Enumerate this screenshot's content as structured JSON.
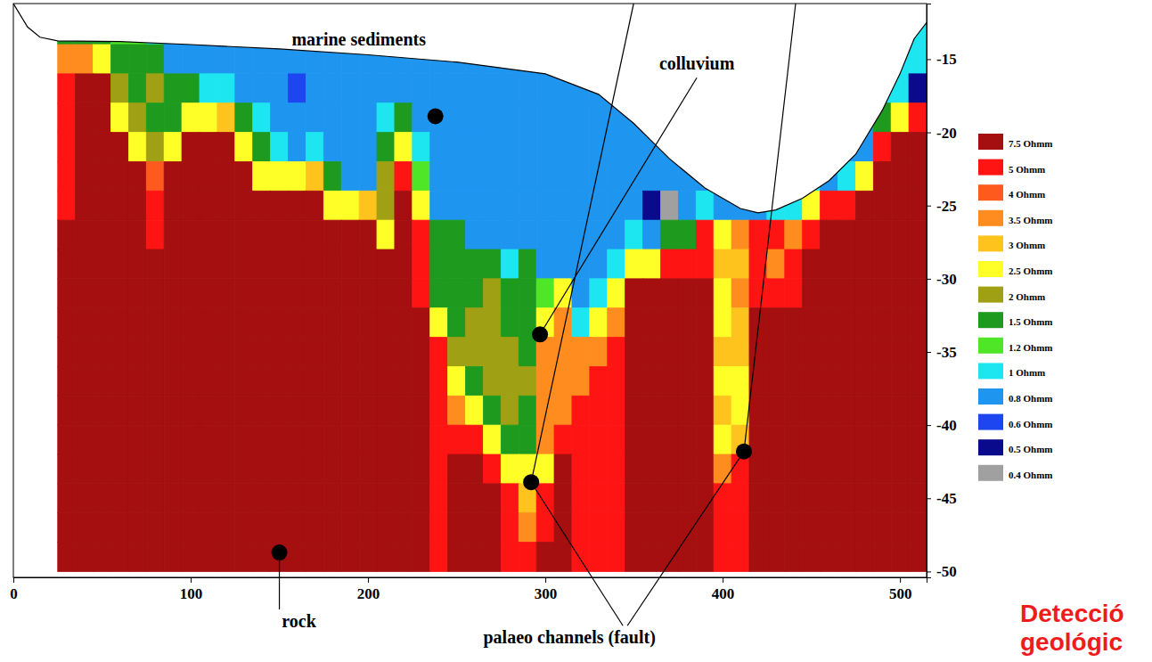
{
  "chart_data": {
    "type": "heatmap",
    "xlim": [
      0,
      515
    ],
    "ylim": [
      -50.4,
      -11.2
    ],
    "xticks": [
      0,
      100,
      200,
      300,
      400,
      500
    ],
    "yticks": [
      -15,
      -20,
      -25,
      -30,
      -35,
      -40,
      -45,
      -50
    ],
    "x_edges": [
      25,
      35,
      45,
      55,
      65,
      75,
      85,
      95,
      105,
      115,
      125,
      135,
      145,
      155,
      165,
      175,
      185,
      195,
      205,
      215,
      225,
      235,
      245,
      255,
      265,
      275,
      285,
      295,
      305,
      315,
      325,
      335,
      345,
      355,
      365,
      375,
      385,
      395,
      405,
      415,
      425,
      435,
      445,
      455,
      465,
      475,
      485,
      495,
      505,
      515
    ],
    "y_edges": [
      -12,
      -14,
      -16,
      -18,
      -20,
      -22,
      -24,
      -26,
      -28,
      -30,
      -32,
      -34,
      -36,
      -38,
      -40,
      -42,
      -44,
      -46,
      -48,
      -50
    ],
    "cells": [
      [
        1.5,
        1.5,
        1.5,
        1.2,
        1.2,
        1,
        0.8,
        0.8,
        null,
        null,
        null,
        null,
        null,
        null,
        null,
        null,
        null,
        null,
        null,
        null,
        null,
        null,
        null,
        null,
        null,
        null,
        null,
        null,
        null,
        null,
        null,
        null,
        null,
        null,
        null,
        null,
        null,
        null,
        null,
        null,
        null,
        null,
        null,
        null,
        null,
        null,
        null,
        null,
        1
      ],
      [
        3.5,
        3.5,
        2.5,
        1.5,
        1.5,
        1.5,
        0.8,
        0.8,
        0.8,
        0.8,
        0.8,
        0.8,
        0.8,
        0.8,
        0.8,
        0.8,
        0.8,
        0.8,
        0.8,
        0.8,
        0.8,
        0.8,
        0.8,
        0.8,
        0.8,
        0.8,
        0.8,
        0.8,
        null,
        null,
        null,
        null,
        null,
        null,
        null,
        null,
        null,
        null,
        null,
        null,
        null,
        null,
        null,
        null,
        null,
        null,
        null,
        1,
        1
      ],
      [
        5,
        7.5,
        7.5,
        2,
        1.5,
        2,
        1.5,
        1.5,
        1,
        1,
        0.8,
        0.8,
        0.8,
        0.6,
        0.8,
        0.8,
        0.8,
        0.8,
        0.8,
        0.8,
        0.8,
        0.8,
        0.8,
        0.8,
        0.8,
        0.8,
        0.8,
        0.8,
        0.8,
        0.8,
        0.8,
        0.8,
        null,
        null,
        null,
        null,
        null,
        null,
        null,
        null,
        null,
        null,
        null,
        null,
        null,
        null,
        1,
        1,
        0.5
      ],
      [
        5,
        7.5,
        7.5,
        2.5,
        2,
        1.5,
        1.5,
        2.5,
        2.5,
        3,
        1.5,
        1,
        0.8,
        0.8,
        0.8,
        0.8,
        0.8,
        0.8,
        1,
        1.5,
        0.8,
        0.8,
        0.8,
        0.8,
        0.8,
        0.8,
        0.8,
        0.8,
        0.8,
        0.8,
        0.8,
        0.8,
        0.8,
        null,
        null,
        null,
        null,
        null,
        null,
        null,
        null,
        null,
        null,
        null,
        null,
        0.8,
        1.5,
        2.5,
        5
      ],
      [
        5,
        7.5,
        7.5,
        7.5,
        2.5,
        2,
        2.5,
        7.5,
        7.5,
        7.5,
        2.5,
        1.5,
        1,
        0.8,
        1,
        0.8,
        0.8,
        0.8,
        1.5,
        2.5,
        1,
        0.8,
        0.8,
        0.8,
        0.8,
        0.8,
        0.8,
        0.8,
        0.8,
        0.8,
        0.8,
        0.8,
        0.8,
        0.8,
        0.8,
        null,
        null,
        null,
        null,
        null,
        null,
        null,
        null,
        null,
        0.8,
        0.8,
        5,
        7.5,
        7.5
      ],
      [
        5,
        7.5,
        7.5,
        7.5,
        7.5,
        4,
        7.5,
        7.5,
        7.5,
        7.5,
        7.5,
        2.5,
        2.5,
        2.5,
        3,
        1.5,
        0.8,
        0.8,
        2,
        5,
        1.2,
        0.8,
        0.8,
        0.8,
        0.8,
        0.8,
        0.8,
        0.8,
        0.8,
        0.8,
        0.8,
        0.8,
        0.8,
        0.8,
        0.8,
        0.8,
        0.8,
        null,
        null,
        null,
        null,
        null,
        1,
        0.8,
        1,
        2.5,
        7.5,
        7.5,
        7.5
      ],
      [
        5,
        7.5,
        7.5,
        7.5,
        7.5,
        5,
        7.5,
        7.5,
        7.5,
        7.5,
        7.5,
        7.5,
        7.5,
        7.5,
        7.5,
        2.5,
        2.5,
        3,
        2,
        7.5,
        2.5,
        0.8,
        0.8,
        0.8,
        0.8,
        0.8,
        0.8,
        0.8,
        0.8,
        0.8,
        0.8,
        0.8,
        0.8,
        0.5,
        0.4,
        0.8,
        1,
        0.8,
        0.8,
        0.8,
        1,
        1,
        2.5,
        5,
        5,
        7.5,
        7.5,
        7.5,
        7.5
      ],
      [
        7.5,
        7.5,
        7.5,
        7.5,
        7.5,
        5,
        7.5,
        7.5,
        7.5,
        7.5,
        7.5,
        7.5,
        7.5,
        7.5,
        7.5,
        7.5,
        7.5,
        7.5,
        2.5,
        7.5,
        5,
        1.5,
        1.5,
        0.8,
        0.8,
        0.8,
        0.8,
        0.8,
        0.8,
        0.8,
        0.8,
        0.8,
        1,
        0.8,
        1.5,
        1.5,
        5,
        2.5,
        3.5,
        5,
        5,
        3.5,
        5,
        7.5,
        7.5,
        7.5,
        7.5,
        7.5,
        7.5
      ],
      [
        7.5,
        7.5,
        7.5,
        7.5,
        7.5,
        7.5,
        7.5,
        7.5,
        7.5,
        7.5,
        7.5,
        7.5,
        7.5,
        7.5,
        7.5,
        7.5,
        7.5,
        7.5,
        7.5,
        7.5,
        5,
        1.5,
        1.5,
        1.5,
        1.5,
        1,
        1.5,
        0.8,
        0.8,
        0.8,
        0.8,
        1,
        2.5,
        2.5,
        5,
        5,
        5,
        3,
        3,
        5,
        3.5,
        5,
        7.5,
        7.5,
        7.5,
        7.5,
        7.5,
        7.5,
        7.5
      ],
      [
        7.5,
        7.5,
        7.5,
        7.5,
        7.5,
        7.5,
        7.5,
        7.5,
        7.5,
        7.5,
        7.5,
        7.5,
        7.5,
        7.5,
        7.5,
        7.5,
        7.5,
        7.5,
        7.5,
        7.5,
        5,
        1.5,
        1.5,
        1.5,
        2,
        1.5,
        1.5,
        1.2,
        2.5,
        0.8,
        1,
        2.5,
        7.5,
        7.5,
        7.5,
        7.5,
        7.5,
        2.5,
        3.5,
        5,
        5,
        5,
        7.5,
        7.5,
        7.5,
        7.5,
        7.5,
        7.5,
        7.5
      ],
      [
        7.5,
        7.5,
        7.5,
        7.5,
        7.5,
        7.5,
        7.5,
        7.5,
        7.5,
        7.5,
        7.5,
        7.5,
        7.5,
        7.5,
        7.5,
        7.5,
        7.5,
        7.5,
        7.5,
        7.5,
        7.5,
        2.5,
        1.5,
        2,
        2,
        1.5,
        1.5,
        2.5,
        3.5,
        1,
        2.5,
        3.5,
        7.5,
        7.5,
        7.5,
        7.5,
        7.5,
        2.5,
        3,
        7.5,
        7.5,
        7.5,
        7.5,
        7.5,
        7.5,
        7.5,
        7.5,
        7.5,
        7.5
      ],
      [
        7.5,
        7.5,
        7.5,
        7.5,
        7.5,
        7.5,
        7.5,
        7.5,
        7.5,
        7.5,
        7.5,
        7.5,
        7.5,
        7.5,
        7.5,
        7.5,
        7.5,
        7.5,
        7.5,
        7.5,
        7.5,
        5,
        2,
        2,
        2,
        2,
        1.5,
        3.5,
        3.5,
        3.5,
        3.5,
        5,
        7.5,
        7.5,
        7.5,
        7.5,
        7.5,
        3,
        3,
        7.5,
        7.5,
        7.5,
        7.5,
        7.5,
        7.5,
        7.5,
        7.5,
        7.5,
        7.5
      ],
      [
        7.5,
        7.5,
        7.5,
        7.5,
        7.5,
        7.5,
        7.5,
        7.5,
        7.5,
        7.5,
        7.5,
        7.5,
        7.5,
        7.5,
        7.5,
        7.5,
        7.5,
        7.5,
        7.5,
        7.5,
        7.5,
        5,
        2.5,
        1.5,
        2,
        2,
        2,
        3.5,
        3.5,
        3.5,
        5,
        5,
        7.5,
        7.5,
        7.5,
        7.5,
        7.5,
        2.5,
        2.5,
        7.5,
        7.5,
        7.5,
        7.5,
        7.5,
        7.5,
        7.5,
        7.5,
        7.5,
        7.5
      ],
      [
        7.5,
        7.5,
        7.5,
        7.5,
        7.5,
        7.5,
        7.5,
        7.5,
        7.5,
        7.5,
        7.5,
        7.5,
        7.5,
        7.5,
        7.5,
        7.5,
        7.5,
        7.5,
        7.5,
        7.5,
        7.5,
        5,
        3.5,
        2.5,
        1.5,
        2,
        1.5,
        3.5,
        3.5,
        5,
        5,
        5,
        7.5,
        7.5,
        7.5,
        7.5,
        7.5,
        3,
        2.5,
        7.5,
        7.5,
        7.5,
        7.5,
        7.5,
        7.5,
        7.5,
        7.5,
        7.5,
        7.5
      ],
      [
        7.5,
        7.5,
        7.5,
        7.5,
        7.5,
        7.5,
        7.5,
        7.5,
        7.5,
        7.5,
        7.5,
        7.5,
        7.5,
        7.5,
        7.5,
        7.5,
        7.5,
        7.5,
        7.5,
        7.5,
        7.5,
        5,
        5,
        5,
        2.5,
        1.5,
        1.5,
        3.5,
        5,
        5,
        5,
        5,
        7.5,
        7.5,
        7.5,
        7.5,
        7.5,
        2.5,
        3,
        7.5,
        7.5,
        7.5,
        7.5,
        7.5,
        7.5,
        7.5,
        7.5,
        7.5,
        7.5
      ],
      [
        7.5,
        7.5,
        7.5,
        7.5,
        7.5,
        7.5,
        7.5,
        7.5,
        7.5,
        7.5,
        7.5,
        7.5,
        7.5,
        7.5,
        7.5,
        7.5,
        7.5,
        7.5,
        7.5,
        7.5,
        7.5,
        5,
        7.5,
        7.5,
        5,
        2.5,
        2.5,
        2.5,
        7.5,
        5,
        5,
        5,
        7.5,
        7.5,
        7.5,
        7.5,
        7.5,
        3.5,
        5,
        7.5,
        7.5,
        7.5,
        7.5,
        7.5,
        7.5,
        7.5,
        7.5,
        7.5,
        7.5
      ],
      [
        7.5,
        7.5,
        7.5,
        7.5,
        7.5,
        7.5,
        7.5,
        7.5,
        7.5,
        7.5,
        7.5,
        7.5,
        7.5,
        7.5,
        7.5,
        7.5,
        7.5,
        7.5,
        7.5,
        7.5,
        7.5,
        5,
        7.5,
        7.5,
        7.5,
        5,
        3,
        5,
        7.5,
        5,
        5,
        5,
        7.5,
        7.5,
        7.5,
        7.5,
        7.5,
        5,
        5,
        7.5,
        7.5,
        7.5,
        7.5,
        7.5,
        7.5,
        7.5,
        7.5,
        7.5,
        7.5
      ],
      [
        7.5,
        7.5,
        7.5,
        7.5,
        7.5,
        7.5,
        7.5,
        7.5,
        7.5,
        7.5,
        7.5,
        7.5,
        7.5,
        7.5,
        7.5,
        7.5,
        7.5,
        7.5,
        7.5,
        7.5,
        7.5,
        5,
        7.5,
        7.5,
        7.5,
        5,
        3.5,
        5,
        7.5,
        5,
        5,
        5,
        7.5,
        7.5,
        7.5,
        7.5,
        7.5,
        5,
        5,
        7.5,
        7.5,
        7.5,
        7.5,
        7.5,
        7.5,
        7.5,
        7.5,
        7.5,
        7.5
      ],
      [
        7.5,
        7.5,
        7.5,
        7.5,
        7.5,
        7.5,
        7.5,
        7.5,
        7.5,
        7.5,
        7.5,
        7.5,
        7.5,
        7.5,
        7.5,
        7.5,
        7.5,
        7.5,
        7.5,
        7.5,
        7.5,
        5,
        7.5,
        7.5,
        7.5,
        5,
        5,
        7.5,
        7.5,
        5,
        5,
        5,
        7.5,
        7.5,
        7.5,
        7.5,
        7.5,
        5,
        5,
        7.5,
        7.5,
        7.5,
        7.5,
        7.5,
        7.5,
        7.5,
        7.5,
        7.5,
        7.5
      ]
    ],
    "colorbar": {
      "ticks": [
        {
          "value": 7.5,
          "label": "7.5 Ohmm"
        },
        {
          "value": 5,
          "label": "5 Ohmm"
        },
        {
          "value": 4,
          "label": "4 Ohmm"
        },
        {
          "value": 3.5,
          "label": "3.5 Ohmm"
        },
        {
          "value": 3,
          "label": "3 Ohmm"
        },
        {
          "value": 2.5,
          "label": "2.5 Ohmm"
        },
        {
          "value": 2,
          "label": "2 Ohmm"
        },
        {
          "value": 1.5,
          "label": "1.5 Ohmm"
        },
        {
          "value": 1.2,
          "label": "1.2 Ohmm"
        },
        {
          "value": 1,
          "label": "1 Ohmm"
        },
        {
          "value": 0.8,
          "label": "0.8 Ohmm"
        },
        {
          "value": 0.6,
          "label": "0.6 Ohmm"
        },
        {
          "value": 0.5,
          "label": "0.5 Ohmm"
        },
        {
          "value": 0.4,
          "label": "0.4 Ohmm"
        }
      ],
      "colors": [
        "#a50f0f",
        "#ff1414",
        "#ff5a1e",
        "#ff8c1e",
        "#ffc31e",
        "#ffff28",
        "#a0a014",
        "#1e9b1e",
        "#50e628",
        "#1ee6f0",
        "#1e96f0",
        "#1e46f0",
        "#0a0a8c",
        "#a0a0a0"
      ]
    },
    "surface": {
      "x": [
        0,
        8,
        15,
        25,
        60,
        100,
        150,
        200,
        250,
        300,
        330,
        350,
        370,
        390,
        410,
        420,
        430,
        445,
        460,
        475,
        490,
        500,
        508,
        515
      ],
      "y": [
        -11.2,
        -12.8,
        -13.5,
        -13.75,
        -13.8,
        -14,
        -14.3,
        -14.7,
        -15.2,
        -16,
        -17.4,
        -19.4,
        -21.8,
        -23.8,
        -25.2,
        -25.5,
        -25.3,
        -24.5,
        -23.3,
        -21.5,
        -18.5,
        -16,
        -13.6,
        -12.5
      ]
    },
    "annotations": [
      {
        "text": "marine sediments",
        "points": [
          {
            "x": 238,
            "y": -18.9
          }
        ]
      },
      {
        "text": "colluvium",
        "points": [
          {
            "x": 297,
            "y": -33.8
          }
        ]
      },
      {
        "text": "rock",
        "points": [
          {
            "x": 150,
            "y": -48.7
          }
        ]
      },
      {
        "text": "palaeo channels (fault)",
        "points": [
          {
            "x": 292,
            "y": -43.9
          },
          {
            "x": 412,
            "y": -41.8
          }
        ]
      }
    ],
    "caption": [
      "Detecció",
      "geológic"
    ]
  }
}
